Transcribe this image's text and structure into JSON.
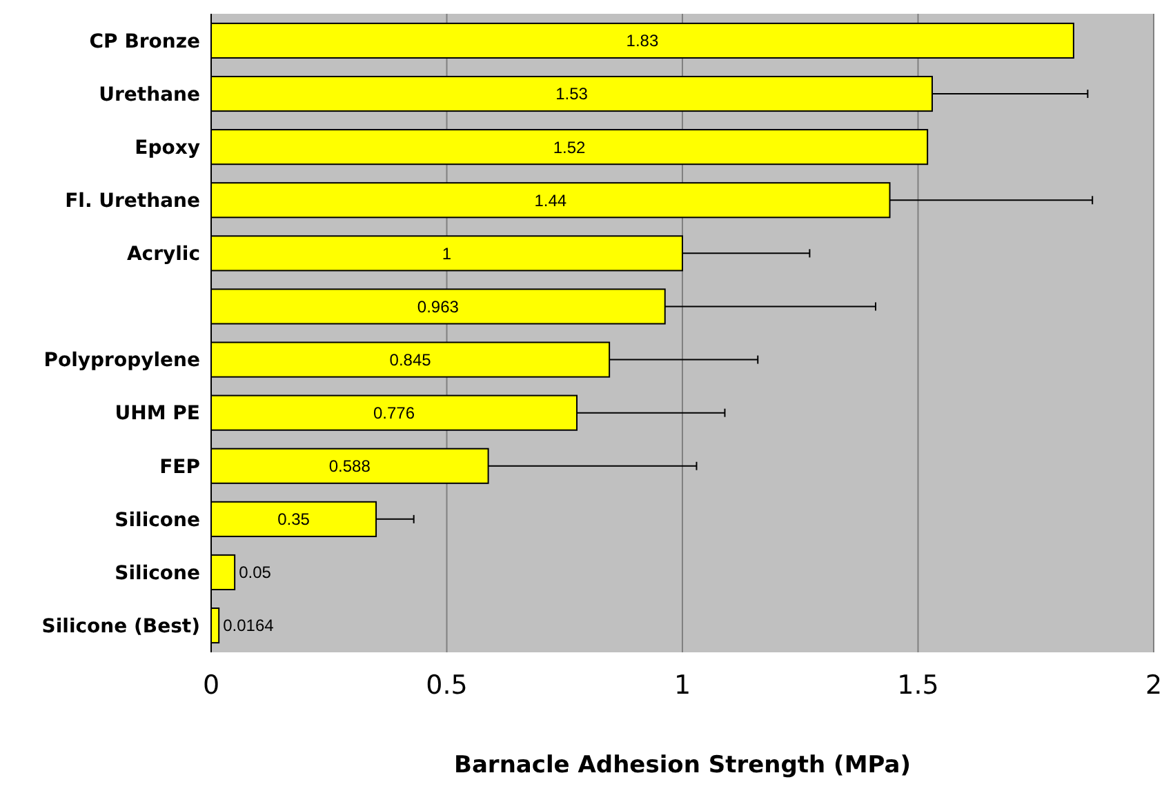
{
  "chart_data": {
    "type": "bar",
    "orientation": "horizontal",
    "xlabel": "Barnacle Adhesion Strength (MPa)",
    "categories": [
      "CP Bronze",
      "Urethane",
      "Epoxy",
      "Fl. Urethane",
      "Acrylic",
      null,
      "Polypropylene",
      "UHM PE",
      "FEP",
      "Silicone",
      "Silicone",
      "Silicone (Best)"
    ],
    "values": [
      1.83,
      1.53,
      1.52,
      1.44,
      1,
      0.963,
      0.845,
      0.776,
      0.588,
      0.35,
      0.05,
      0.0164
    ],
    "value_labels": [
      "1.83",
      "1.53",
      "1.52",
      "1.44",
      "1",
      "0.963",
      "0.845",
      "0.776",
      "0.588",
      "0.35",
      "0.05",
      "0.0164"
    ],
    "errors": [
      null,
      [
        1.53,
        1.86
      ],
      null,
      [
        1.44,
        1.87
      ],
      [
        1,
        1.27
      ],
      [
        0.963,
        1.41
      ],
      [
        0.845,
        1.16
      ],
      [
        0.776,
        1.09
      ],
      [
        0.588,
        1.03
      ],
      [
        0.35,
        0.43
      ],
      null,
      null
    ],
    "color": "#ffff00",
    "xlim": [
      0,
      2
    ],
    "xticks": [
      0,
      0.5,
      1,
      1.5,
      2
    ],
    "grid": "x"
  }
}
